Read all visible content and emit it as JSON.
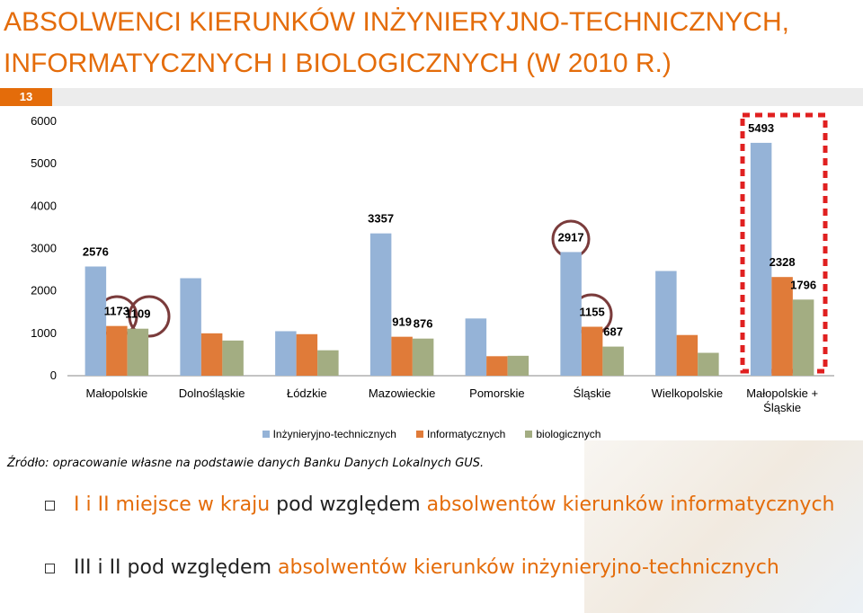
{
  "header": {
    "title": "ABSOLWENCI KIERUNKÓW INŻYNIERYJNO-TECHNICZNYCH, INFORMATYCZNYCH I BIOLOGICZNYCH (W 2010 R.)",
    "slide_number": "13"
  },
  "chart_data": {
    "type": "bar",
    "categories": [
      "Małopolskie",
      "Dolnośląskie",
      "Łódzkie",
      "Mazowieckie",
      "Pomorskie",
      "Śląskie",
      "Wielkopolskie",
      "Małopolskie + Śląskie"
    ],
    "series": [
      {
        "name": "Inżynieryjno-technicznych",
        "color": "#95b3d7",
        "values": [
          2576,
          2300,
          1050,
          3357,
          1350,
          2917,
          2470,
          5493
        ],
        "value_labels": [
          "2576",
          null,
          null,
          "3357",
          null,
          "2917",
          null,
          "5493"
        ]
      },
      {
        "name": "Informatycznych",
        "color": "#e07b39",
        "values": [
          1173,
          1000,
          980,
          919,
          460,
          1155,
          960,
          2328
        ],
        "value_labels": [
          "1173",
          null,
          null,
          "919",
          null,
          "1155",
          null,
          "2328"
        ]
      },
      {
        "name": "biologicznych",
        "color": "#a3ad82",
        "values": [
          1109,
          830,
          600,
          876,
          470,
          687,
          540,
          1796
        ],
        "value_labels": [
          "1109",
          null,
          null,
          "876",
          null,
          "687",
          null,
          "1796"
        ]
      }
    ],
    "ylim": [
      0,
      6000
    ],
    "yticks": [
      0,
      1000,
      2000,
      3000,
      4000,
      5000,
      6000
    ],
    "grid": false,
    "legend": "bottom"
  },
  "source": "Źródło: opracowanie własne na podstawie danych Banku Danych Lokalnych GUS.",
  "bullets": [
    [
      {
        "text": "I i II miejsce w kraju",
        "color": "#e46c0a"
      },
      {
        "text": "pod względem",
        "color": "#222222"
      },
      {
        "text": "absolwentów kierunków informatycznych",
        "color": "#e46c0a"
      }
    ],
    [
      {
        "text": "III i II pod względem",
        "color": "#222222"
      },
      {
        "text": "absolwentów kierunków inżynieryjno-technicznych",
        "color": "#e46c0a"
      }
    ]
  ]
}
